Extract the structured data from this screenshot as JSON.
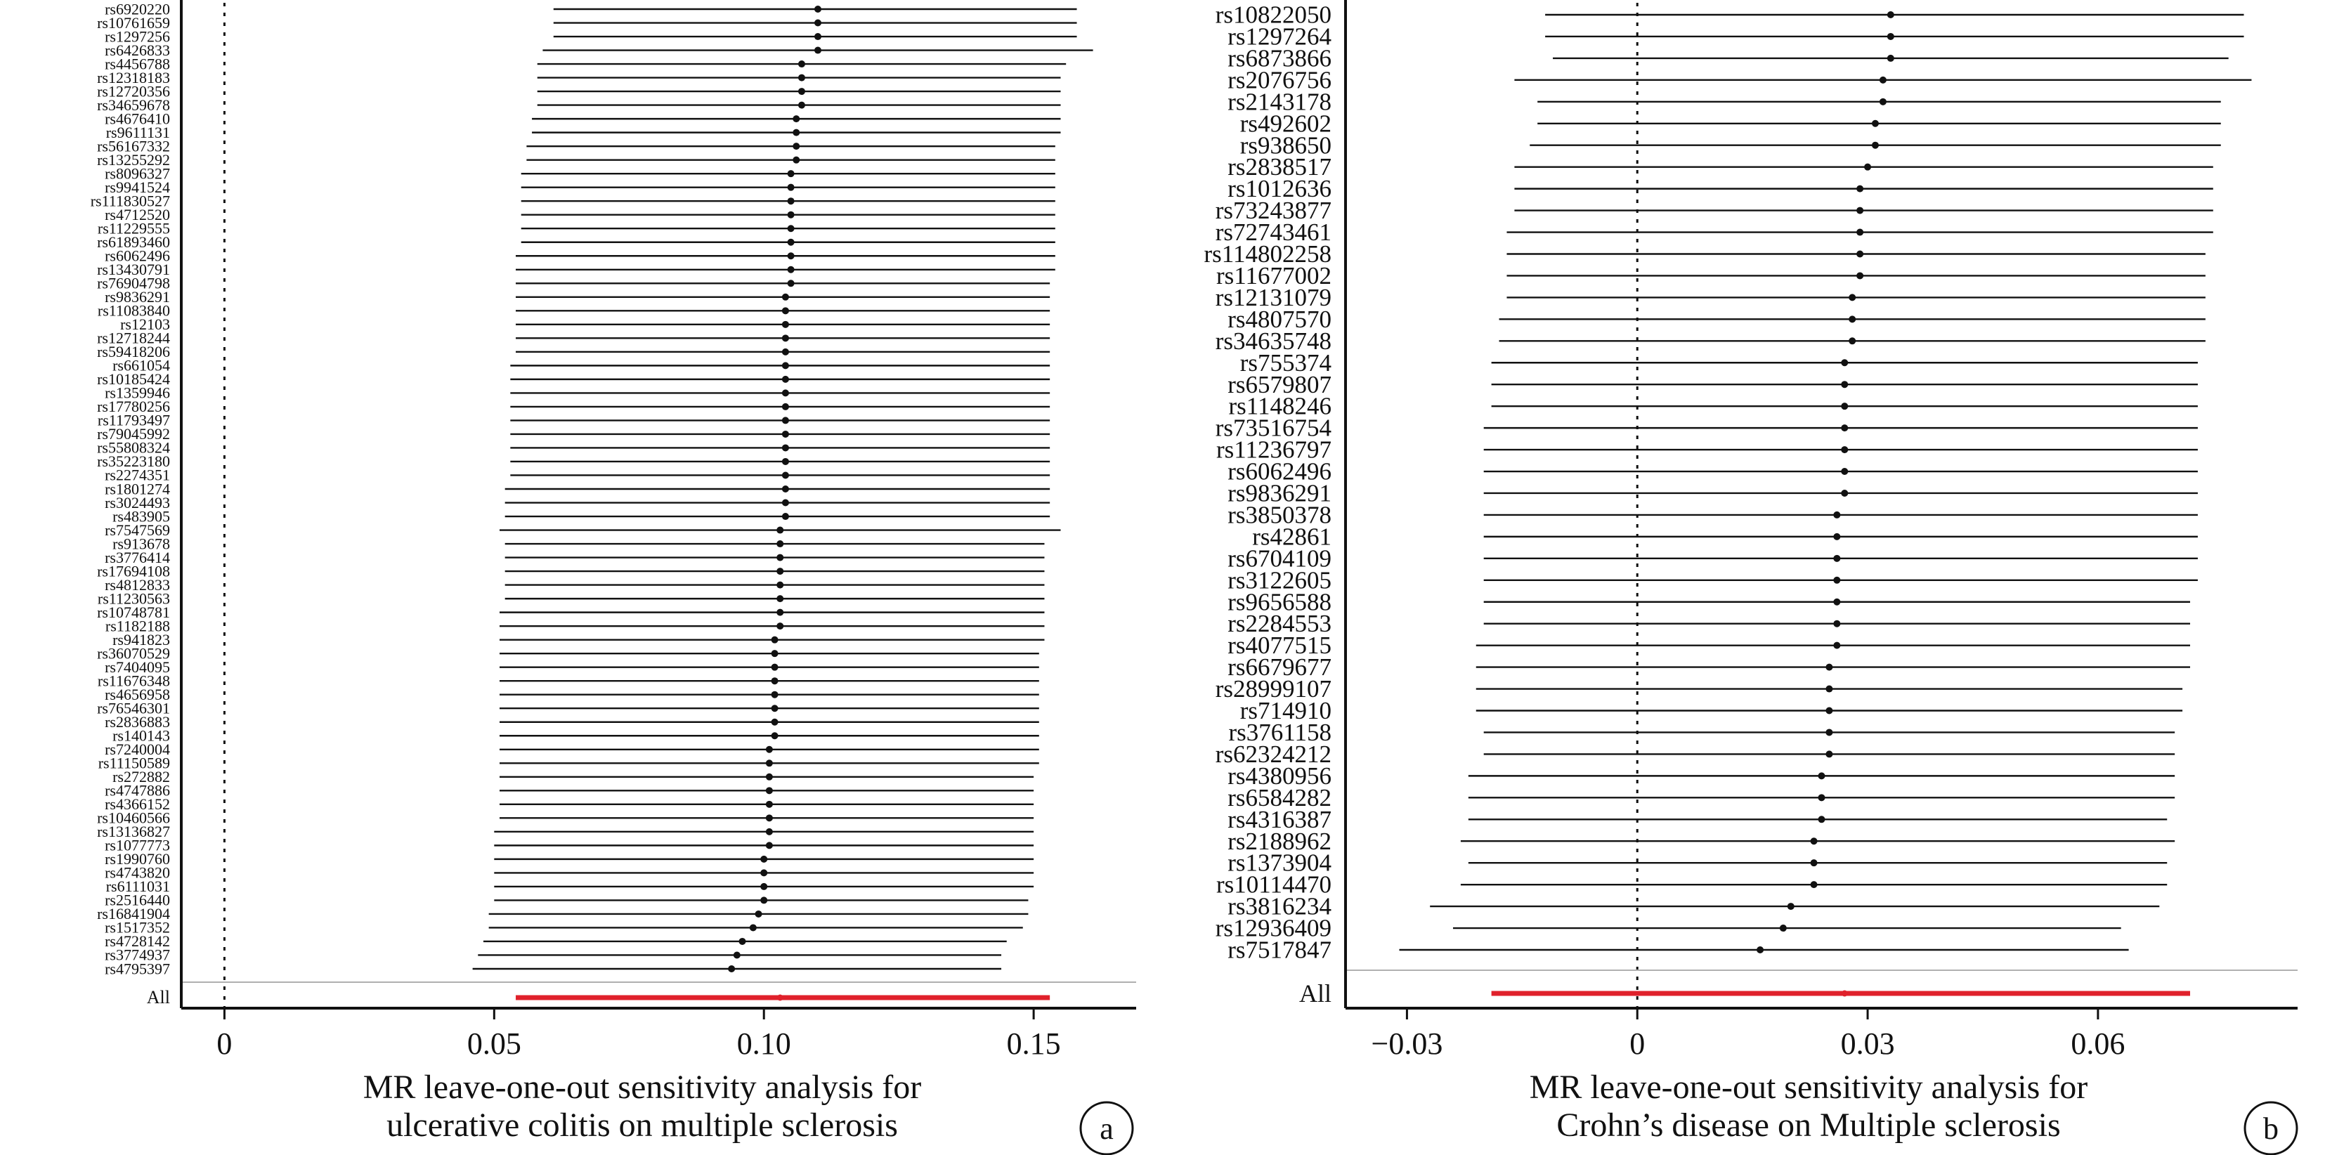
{
  "panels": [
    {
      "id": "a",
      "label": "a",
      "xlabel_lines": [
        "MR leave-one-out sensitivity analysis for",
        "ulcerative colitis  on multiple sclerosis"
      ]
    },
    {
      "id": "b",
      "label": "b",
      "xlabel_lines": [
        "MR leave-one-out sensitivity analysis for",
        "Crohn’s disease on Multiple sclerosis"
      ]
    }
  ],
  "colors": {
    "point": "#111111",
    "line": "#111111",
    "all_line": "#e0212b",
    "separator": "#b0b0b0"
  },
  "chart_data": [
    {
      "type": "scatter",
      "subtype": "forest",
      "title": "",
      "xlabel": "MR leave-one-out sensitivity analysis for ulcerative colitis  on multiple sclerosis",
      "ylabel": "",
      "xlim": [
        -0.008,
        0.169
      ],
      "xticks": [
        0,
        0.05,
        0.1,
        0.15
      ],
      "xtick_labels": [
        "0",
        "0.05",
        "0.10",
        "0.15"
      ],
      "reference_line": 0,
      "grid": false,
      "snps": [
        "rs6920220",
        "rs10761659",
        "rs1297256",
        "rs6426833",
        "rs4456788",
        "rs12318183",
        "rs12720356",
        "rs34659678",
        "rs4676410",
        "rs9611131",
        "rs56167332",
        "rs13255292",
        "rs8096327",
        "rs9941524",
        "rs111830527",
        "rs4712520",
        "rs11229555",
        "rs61893460",
        "rs6062496",
        "rs13430791",
        "rs76904798",
        "rs9836291",
        "rs11083840",
        "rs12103",
        "rs12718244",
        "rs59418206",
        "rs661054",
        "rs10185424",
        "rs1359946",
        "rs17780256",
        "rs11793497",
        "rs79045992",
        "rs55808324",
        "rs35223180",
        "rs2274351",
        "rs1801274",
        "rs3024493",
        "rs483905",
        "rs7547569",
        "rs913678",
        "rs3776414",
        "rs17694108",
        "rs4812833",
        "rs11230563",
        "rs10748781",
        "rs1182188",
        "rs941823",
        "rs36070529",
        "rs7404095",
        "rs11676348",
        "rs4656958",
        "rs76546301",
        "rs2836883",
        "rs140143",
        "rs7240004",
        "rs11150589",
        "rs272882",
        "rs4747886",
        "rs4366152",
        "rs10460566",
        "rs13136827",
        "rs1077773",
        "rs1990760",
        "rs4743820",
        "rs6111031",
        "rs2516440",
        "rs16841904",
        "rs1517352",
        "rs4728142",
        "rs3774937",
        "rs4795397"
      ],
      "estimates": [
        0.11,
        0.11,
        0.11,
        0.11,
        0.107,
        0.107,
        0.107,
        0.107,
        0.106,
        0.106,
        0.106,
        0.106,
        0.105,
        0.105,
        0.105,
        0.105,
        0.105,
        0.105,
        0.105,
        0.105,
        0.105,
        0.104,
        0.104,
        0.104,
        0.104,
        0.104,
        0.104,
        0.104,
        0.104,
        0.104,
        0.104,
        0.104,
        0.104,
        0.104,
        0.104,
        0.104,
        0.104,
        0.104,
        0.103,
        0.103,
        0.103,
        0.103,
        0.103,
        0.103,
        0.103,
        0.103,
        0.102,
        0.102,
        0.102,
        0.102,
        0.102,
        0.102,
        0.102,
        0.102,
        0.101,
        0.101,
        0.101,
        0.101,
        0.101,
        0.101,
        0.101,
        0.101,
        0.1,
        0.1,
        0.1,
        0.1,
        0.099,
        0.098,
        0.096,
        0.095,
        0.094
      ],
      "lower": [
        0.061,
        0.061,
        0.061,
        0.059,
        0.058,
        0.058,
        0.058,
        0.058,
        0.057,
        0.057,
        0.056,
        0.056,
        0.055,
        0.055,
        0.055,
        0.055,
        0.055,
        0.055,
        0.054,
        0.054,
        0.054,
        0.054,
        0.054,
        0.054,
        0.054,
        0.054,
        0.053,
        0.053,
        0.053,
        0.053,
        0.053,
        0.053,
        0.053,
        0.053,
        0.053,
        0.052,
        0.052,
        0.052,
        0.051,
        0.052,
        0.052,
        0.052,
        0.052,
        0.052,
        0.051,
        0.051,
        0.051,
        0.051,
        0.051,
        0.051,
        0.051,
        0.051,
        0.051,
        0.051,
        0.051,
        0.051,
        0.051,
        0.051,
        0.051,
        0.051,
        0.05,
        0.05,
        0.05,
        0.05,
        0.05,
        0.05,
        0.049,
        0.049,
        0.048,
        0.047,
        0.046
      ],
      "upper": [
        0.158,
        0.158,
        0.158,
        0.161,
        0.156,
        0.155,
        0.155,
        0.155,
        0.155,
        0.155,
        0.154,
        0.154,
        0.154,
        0.154,
        0.154,
        0.154,
        0.154,
        0.154,
        0.154,
        0.154,
        0.153,
        0.153,
        0.153,
        0.153,
        0.153,
        0.153,
        0.153,
        0.153,
        0.153,
        0.153,
        0.153,
        0.153,
        0.153,
        0.153,
        0.153,
        0.153,
        0.153,
        0.153,
        0.155,
        0.152,
        0.152,
        0.152,
        0.152,
        0.152,
        0.152,
        0.152,
        0.152,
        0.151,
        0.151,
        0.151,
        0.151,
        0.151,
        0.151,
        0.151,
        0.151,
        0.151,
        0.15,
        0.15,
        0.15,
        0.15,
        0.15,
        0.15,
        0.15,
        0.15,
        0.15,
        0.149,
        0.149,
        0.148,
        0.145,
        0.144,
        0.144
      ],
      "all": {
        "label": "All",
        "estimate": 0.103,
        "lower": 0.054,
        "upper": 0.153
      }
    },
    {
      "type": "scatter",
      "subtype": "forest",
      "title": "",
      "xlabel": "MR leave-one-out sensitivity analysis for Crohn’s disease on Multiple sclerosis",
      "ylabel": "",
      "xlim": [
        -0.038,
        0.086
      ],
      "xticks": [
        -0.03,
        0,
        0.03,
        0.06
      ],
      "xtick_labels": [
        "−0.03",
        "0",
        "0.03",
        "0.06"
      ],
      "reference_line": 0,
      "grid": false,
      "snps": [
        "rs10822050",
        "rs1297264",
        "rs6873866",
        "rs2076756",
        "rs2143178",
        "rs492602",
        "rs938650",
        "rs2838517",
        "rs1012636",
        "rs73243877",
        "rs72743461",
        "rs114802258",
        "rs11677002",
        "rs12131079",
        "rs4807570",
        "rs34635748",
        "rs755374",
        "rs6579807",
        "rs1148246",
        "rs73516754",
        "rs11236797",
        "rs6062496",
        "rs9836291",
        "rs3850378",
        "rs42861",
        "rs6704109",
        "rs3122605",
        "rs9656588",
        "rs2284553",
        "rs4077515",
        "rs6679677",
        "rs28999107",
        "rs714910",
        "rs3761158",
        "rs62324212",
        "rs4380956",
        "rs6584282",
        "rs4316387",
        "rs2188962",
        "rs1373904",
        "rs10114470",
        "rs3816234",
        "rs12936409",
        "rs7517847"
      ],
      "estimates": [
        0.033,
        0.033,
        0.033,
        0.032,
        0.032,
        0.031,
        0.031,
        0.03,
        0.029,
        0.029,
        0.029,
        0.029,
        0.029,
        0.028,
        0.028,
        0.028,
        0.027,
        0.027,
        0.027,
        0.027,
        0.027,
        0.027,
        0.027,
        0.026,
        0.026,
        0.026,
        0.026,
        0.026,
        0.026,
        0.026,
        0.025,
        0.025,
        0.025,
        0.025,
        0.025,
        0.024,
        0.024,
        0.024,
        0.023,
        0.023,
        0.023,
        0.02,
        0.019,
        0.016
      ],
      "lower": [
        -0.012,
        -0.012,
        -0.011,
        -0.016,
        -0.013,
        -0.013,
        -0.014,
        -0.016,
        -0.016,
        -0.016,
        -0.017,
        -0.017,
        -0.017,
        -0.017,
        -0.018,
        -0.018,
        -0.019,
        -0.019,
        -0.019,
        -0.02,
        -0.02,
        -0.02,
        -0.02,
        -0.02,
        -0.02,
        -0.02,
        -0.02,
        -0.02,
        -0.02,
        -0.021,
        -0.021,
        -0.021,
        -0.021,
        -0.02,
        -0.02,
        -0.022,
        -0.022,
        -0.022,
        -0.023,
        -0.022,
        -0.023,
        -0.027,
        -0.024,
        -0.031
      ],
      "upper": [
        0.079,
        0.079,
        0.077,
        0.08,
        0.076,
        0.076,
        0.076,
        0.075,
        0.075,
        0.075,
        0.075,
        0.074,
        0.074,
        0.074,
        0.074,
        0.074,
        0.073,
        0.073,
        0.073,
        0.073,
        0.073,
        0.073,
        0.073,
        0.073,
        0.073,
        0.073,
        0.073,
        0.072,
        0.072,
        0.072,
        0.072,
        0.071,
        0.071,
        0.07,
        0.07,
        0.07,
        0.07,
        0.069,
        0.07,
        0.069,
        0.069,
        0.068,
        0.063,
        0.064
      ],
      "all": {
        "label": "All",
        "estimate": 0.027,
        "lower": -0.019,
        "upper": 0.072
      }
    }
  ]
}
